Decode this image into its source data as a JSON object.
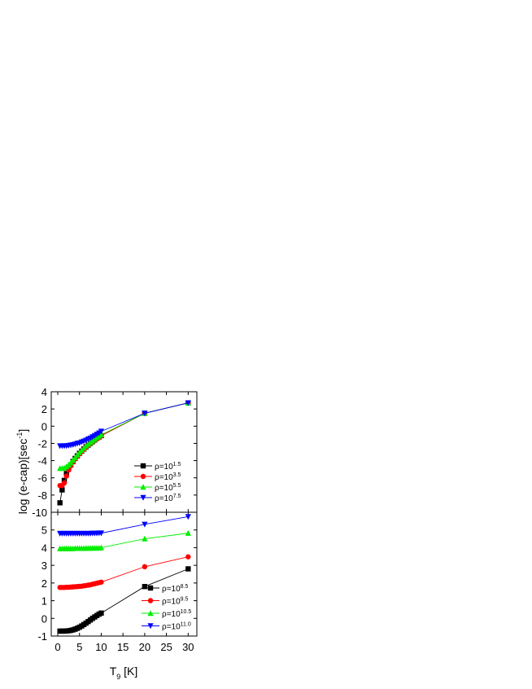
{
  "chart_data": [
    {
      "type": "line",
      "panel": "top",
      "xlabel_main": "T",
      "xlabel_sub": "9",
      "xlabel_unit": " [K]",
      "ylabel": "log (e-cap)[sec",
      "ylabel_sup": "-1",
      "ylabel_tail": "]",
      "xlim": [
        -1.5,
        32
      ],
      "ylim": [
        -10,
        4
      ],
      "xticks": [
        "0",
        "5",
        "10",
        "15",
        "20",
        "25",
        "30"
      ],
      "yticks": [
        "-10",
        "-8",
        "-6",
        "-4",
        "-2",
        "0",
        "2",
        "4"
      ],
      "legend_position": "bottom-right",
      "x": [
        0.5,
        1,
        1.5,
        2,
        2.5,
        3,
        3.5,
        4,
        4.5,
        5,
        5.5,
        6,
        6.5,
        7,
        7.5,
        8,
        8.5,
        9,
        9.5,
        10,
        20,
        30
      ],
      "series": [
        {
          "name_base": "ρ=10",
          "name_exp": "1.5",
          "color": "#000000",
          "marker": "square",
          "values": [
            -8.9,
            -7.4,
            -6.3,
            -5.5,
            -4.95,
            -4.5,
            -4.1,
            -3.75,
            -3.45,
            -3.15,
            -2.9,
            -2.65,
            -2.4,
            -2.2,
            -2.0,
            -1.8,
            -1.6,
            -1.4,
            -1.25,
            -1.1,
            1.5,
            2.7
          ]
        },
        {
          "name_base": "ρ=10",
          "name_exp": "3.5",
          "color": "#ff0000",
          "marker": "circle",
          "values": [
            -6.9,
            -6.9,
            -6.6,
            -5.8,
            -5.1,
            -4.6,
            -4.15,
            -3.8,
            -3.5,
            -3.2,
            -2.95,
            -2.7,
            -2.45,
            -2.25,
            -2.05,
            -1.85,
            -1.65,
            -1.45,
            -1.3,
            -1.1,
            1.5,
            2.7
          ]
        },
        {
          "name_base": "ρ=10",
          "name_exp": "5.5",
          "color": "#00ee00",
          "marker": "triangle-up",
          "values": [
            -4.9,
            -4.9,
            -4.85,
            -4.7,
            -4.5,
            -4.25,
            -3.95,
            -3.65,
            -3.35,
            -3.05,
            -2.8,
            -2.55,
            -2.3,
            -2.1,
            -1.9,
            -1.7,
            -1.5,
            -1.3,
            -1.15,
            -1.0,
            1.5,
            2.7
          ]
        },
        {
          "name_base": "ρ=10",
          "name_exp": "7.5",
          "color": "#0000ff",
          "marker": "triangle-down",
          "values": [
            -2.3,
            -2.3,
            -2.3,
            -2.28,
            -2.25,
            -2.2,
            -2.15,
            -2.1,
            -2.0,
            -1.95,
            -1.85,
            -1.75,
            -1.65,
            -1.5,
            -1.4,
            -1.25,
            -1.1,
            -0.95,
            -0.8,
            -0.6,
            1.5,
            2.7
          ]
        }
      ]
    },
    {
      "type": "line",
      "panel": "bottom",
      "xlim": [
        -1.5,
        32
      ],
      "ylim": [
        -1,
        6
      ],
      "xticks": [
        "0",
        "5",
        "10",
        "15",
        "20",
        "25",
        "30"
      ],
      "yticks": [
        "-1",
        "0",
        "1",
        "2",
        "3",
        "4",
        "5"
      ],
      "legend_position": "bottom-right",
      "x": [
        0.5,
        1,
        1.5,
        2,
        2.5,
        3,
        3.5,
        4,
        4.5,
        5,
        5.5,
        6,
        6.5,
        7,
        7.5,
        8,
        8.5,
        9,
        9.5,
        10,
        20,
        30
      ],
      "series": [
        {
          "name_base": "ρ=10",
          "name_exp": "8.5",
          "color": "#000000",
          "marker": "square",
          "values": [
            -0.72,
            -0.72,
            -0.72,
            -0.71,
            -0.7,
            -0.68,
            -0.65,
            -0.61,
            -0.56,
            -0.5,
            -0.43,
            -0.35,
            -0.27,
            -0.18,
            -0.09,
            0.0,
            0.08,
            0.16,
            0.24,
            0.3,
            1.8,
            2.8
          ]
        },
        {
          "name_base": "ρ=10",
          "name_exp": "9.5",
          "color": "#ff0000",
          "marker": "circle",
          "values": [
            1.75,
            1.75,
            1.75,
            1.76,
            1.76,
            1.77,
            1.78,
            1.79,
            1.8,
            1.81,
            1.82,
            1.84,
            1.86,
            1.88,
            1.9,
            1.93,
            1.96,
            1.99,
            2.02,
            2.05,
            2.92,
            3.48
          ]
        },
        {
          "name_base": "ρ=10",
          "name_exp": "10.5",
          "color": "#00ee00",
          "marker": "triangle-up",
          "values": [
            3.95,
            3.95,
            3.95,
            3.95,
            3.95,
            3.95,
            3.95,
            3.96,
            3.96,
            3.96,
            3.96,
            3.96,
            3.97,
            3.97,
            3.97,
            3.97,
            3.98,
            3.98,
            3.98,
            4.0,
            4.5,
            4.82
          ]
        },
        {
          "name_base": "ρ=10",
          "name_exp": "11.0",
          "color": "#0000ff",
          "marker": "triangle-down",
          "values": [
            4.8,
            4.8,
            4.8,
            4.8,
            4.8,
            4.8,
            4.8,
            4.8,
            4.8,
            4.8,
            4.8,
            4.8,
            4.8,
            4.8,
            4.8,
            4.81,
            4.81,
            4.81,
            4.82,
            4.82,
            5.32,
            5.75
          ]
        }
      ]
    }
  ]
}
